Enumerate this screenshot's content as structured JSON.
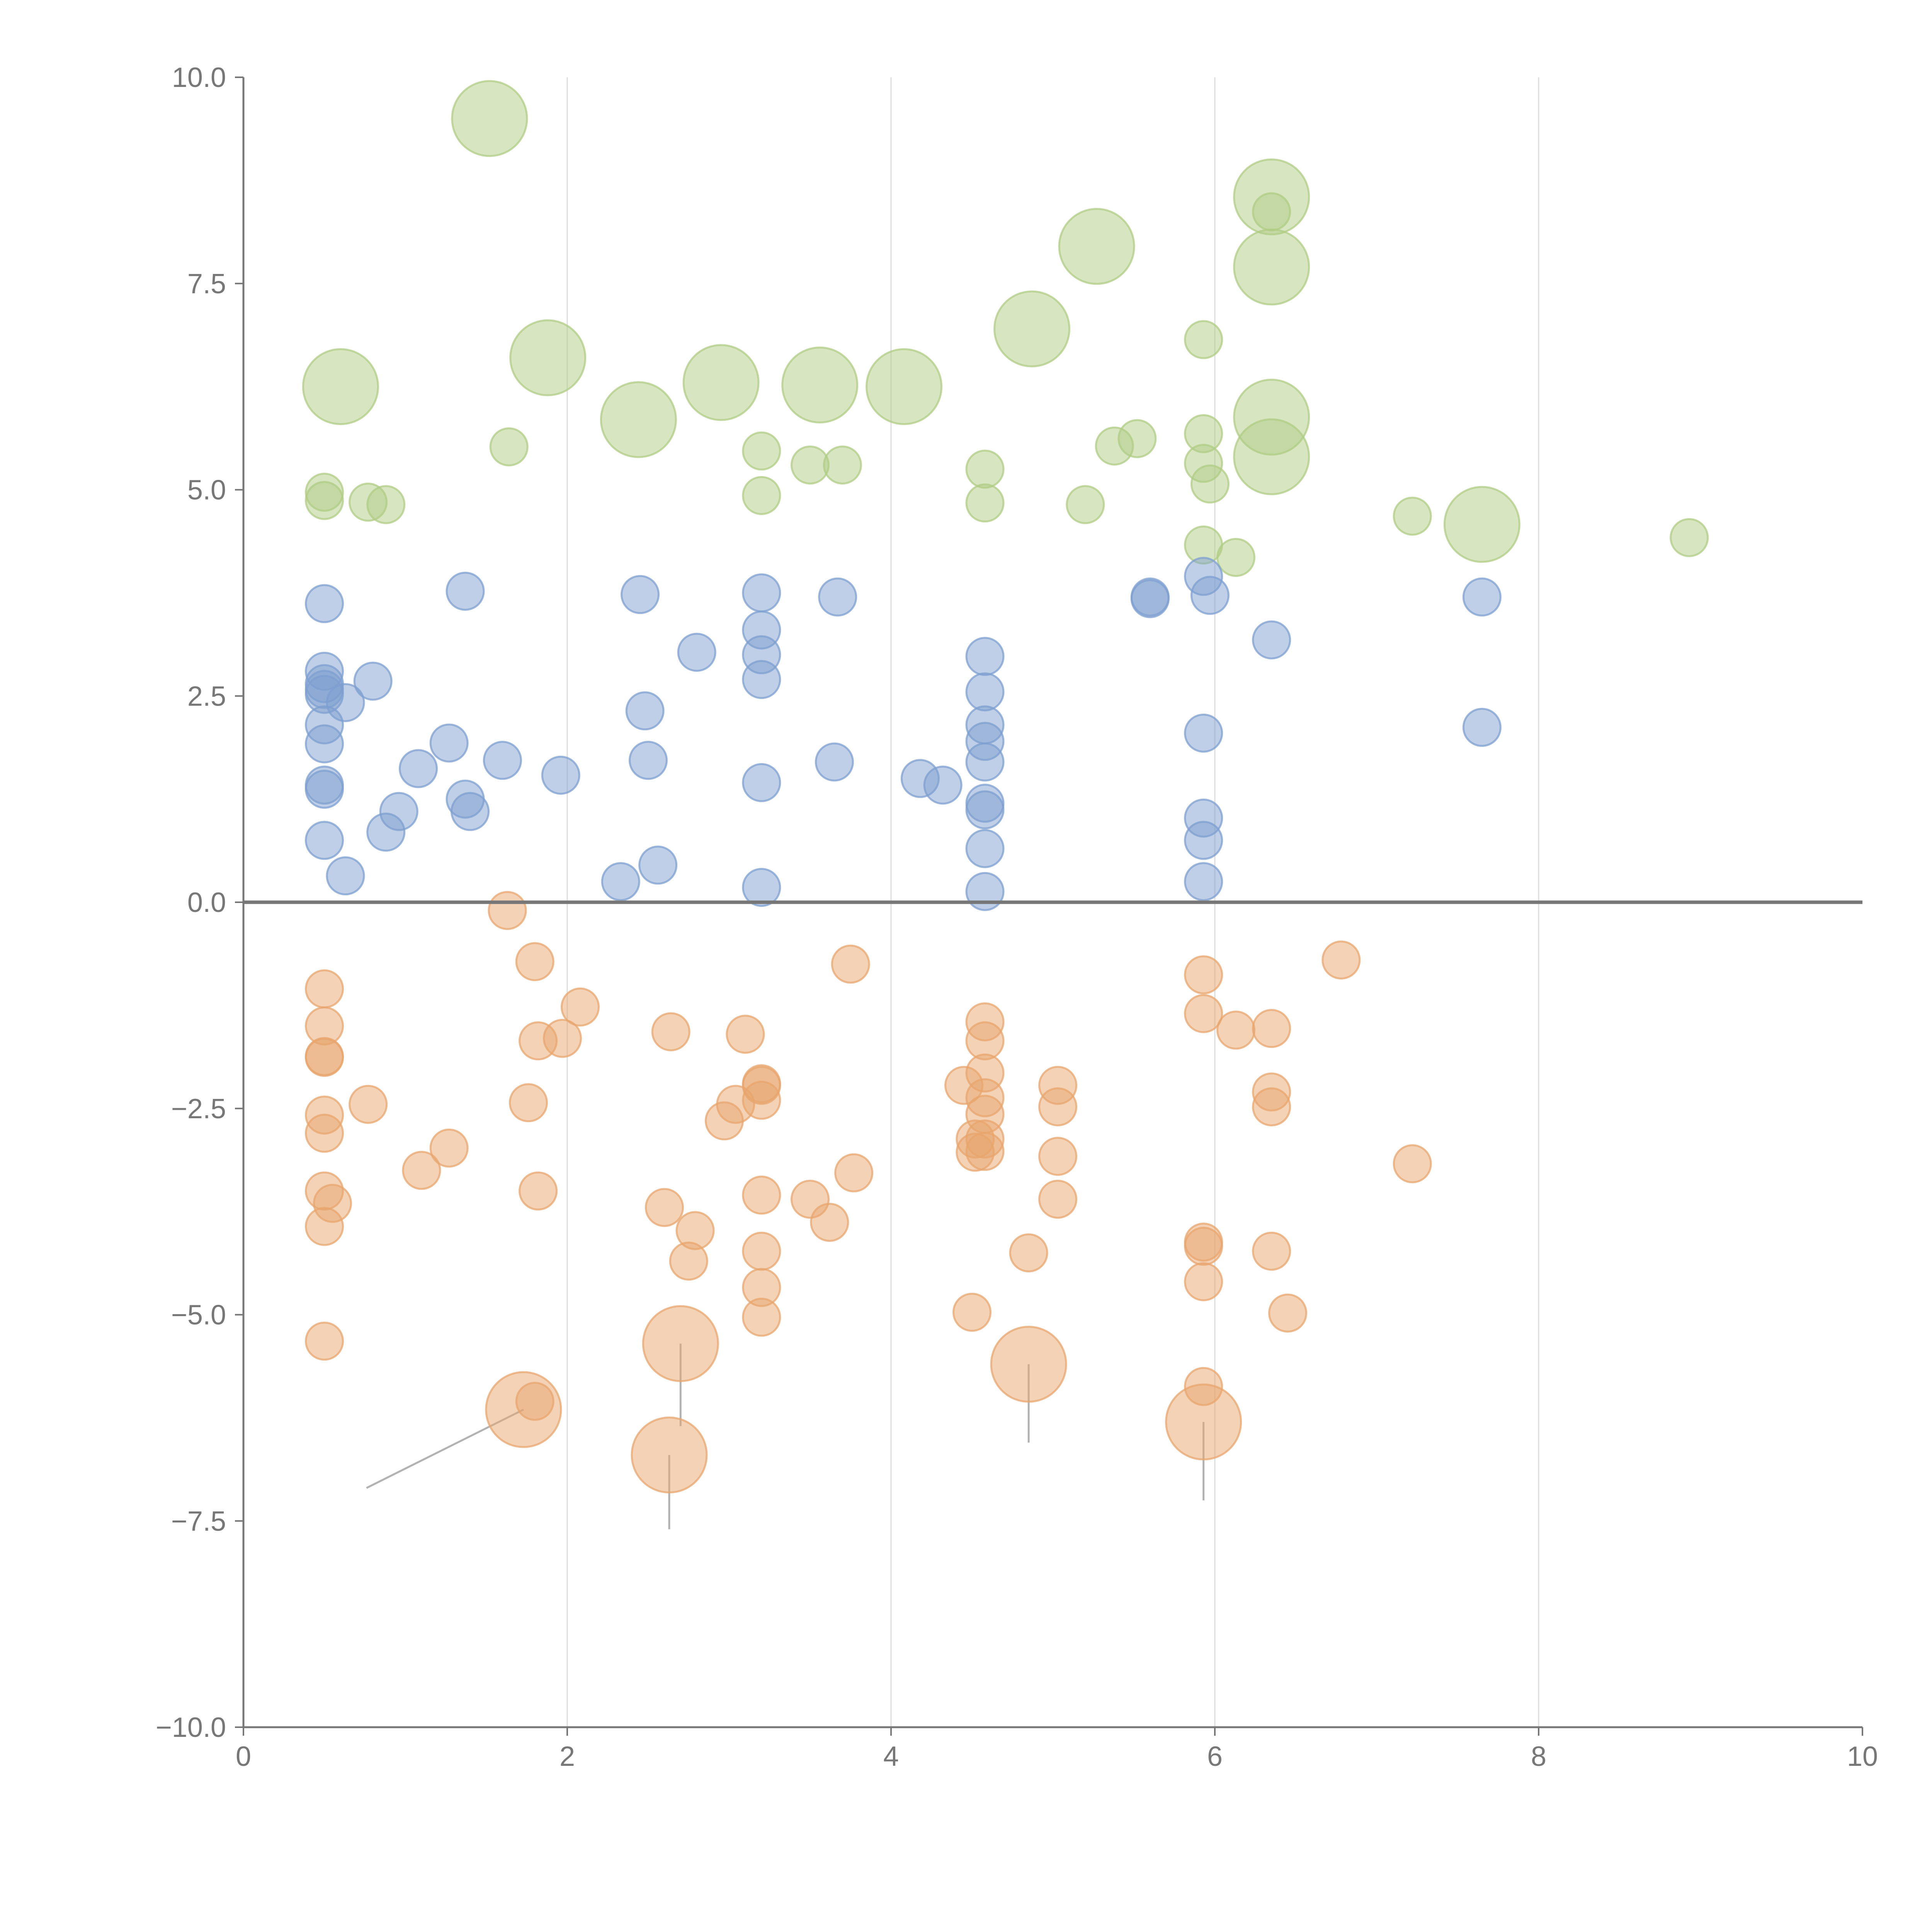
{
  "chart_data": {
    "type": "scatter",
    "title": "",
    "xlabel": "",
    "ylabel": "",
    "xlim": [
      0,
      10
    ],
    "ylim": [
      -10,
      10
    ],
    "x_ticks": [
      "0",
      "2",
      "4",
      "6",
      "8",
      "10"
    ],
    "y_ticks": [
      "−10.0",
      "−7.5",
      "−5.0",
      "−2.5",
      "0.0",
      "2.5",
      "5.0",
      "7.5",
      "10.0"
    ],
    "grid": "vertical",
    "zero_line": true,
    "colors": {
      "top": "#b0cc84",
      "middle": "#7d9fd0",
      "bottom": "#e8a56e",
      "leader": "#aaaaaa",
      "axis": "#777777"
    },
    "series": [
      {
        "key": "top",
        "small": [
          [
            0.5,
            4.97
          ],
          [
            0.5,
            4.87
          ],
          [
            0.77,
            4.85
          ],
          [
            0.88,
            4.82
          ],
          [
            1.64,
            5.52
          ],
          [
            3.2,
            5.47
          ],
          [
            3.2,
            4.93
          ],
          [
            3.5,
            5.3
          ],
          [
            3.7,
            5.3
          ],
          [
            4.58,
            5.25
          ],
          [
            4.58,
            4.84
          ],
          [
            5.2,
            4.82
          ],
          [
            5.38,
            5.53
          ],
          [
            5.52,
            5.62
          ],
          [
            5.93,
            6.82
          ],
          [
            5.93,
            5.68
          ],
          [
            5.93,
            5.32
          ],
          [
            5.97,
            5.07
          ],
          [
            5.93,
            4.33
          ],
          [
            6.13,
            4.18
          ],
          [
            6.35,
            8.37
          ],
          [
            7.22,
            4.68
          ],
          [
            8.93,
            4.42
          ]
        ],
        "large": [
          [
            0.6,
            6.25,
            0.8,
            6.0
          ],
          [
            1.52,
            9.5,
            1.82,
            9.55
          ],
          [
            1.88,
            6.6,
            1.88,
            6.75
          ],
          [
            2.44,
            5.85,
            2.5,
            5.95
          ],
          [
            2.95,
            6.3,
            3.05,
            6.32
          ],
          [
            3.56,
            6.27,
            3.56,
            6.25
          ],
          [
            4.08,
            6.25,
            4.15,
            6.1
          ],
          [
            4.87,
            6.95,
            4.95,
            6.6
          ],
          [
            5.27,
            7.95,
            5.3,
            8.0
          ],
          [
            6.35,
            8.55,
            6.5,
            8.75
          ],
          [
            6.35,
            7.7,
            6.45,
            7.7
          ],
          [
            6.35,
            5.88,
            6.45,
            5.95
          ],
          [
            6.35,
            5.4,
            6.4,
            5.25
          ],
          [
            7.65,
            4.58,
            7.85,
            4.65
          ]
        ]
      },
      {
        "key": "middle",
        "small": [
          [
            0.5,
            3.62
          ],
          [
            0.5,
            2.8
          ],
          [
            0.5,
            2.65
          ],
          [
            0.5,
            2.58
          ],
          [
            0.5,
            2.52
          ],
          [
            0.63,
            2.42
          ],
          [
            0.8,
            2.68
          ],
          [
            0.5,
            2.15
          ],
          [
            0.5,
            1.92
          ],
          [
            0.5,
            1.42
          ],
          [
            0.5,
            1.37
          ],
          [
            0.5,
            0.75
          ],
          [
            0.63,
            0.32
          ],
          [
            0.88,
            0.85
          ],
          [
            0.96,
            1.1
          ],
          [
            1.08,
            1.62
          ],
          [
            1.27,
            1.93
          ],
          [
            1.37,
            1.25
          ],
          [
            1.4,
            1.1
          ],
          [
            1.37,
            3.77
          ],
          [
            1.6,
            1.72
          ],
          [
            1.96,
            1.54
          ],
          [
            2.33,
            0.25
          ],
          [
            2.45,
            3.73
          ],
          [
            2.48,
            2.32
          ],
          [
            2.5,
            1.72
          ],
          [
            2.56,
            0.45
          ],
          [
            2.8,
            3.03
          ],
          [
            3.2,
            3.75
          ],
          [
            3.2,
            3.3
          ],
          [
            3.2,
            3.0
          ],
          [
            3.2,
            2.7
          ],
          [
            3.2,
            1.45
          ],
          [
            3.2,
            0.18
          ],
          [
            3.65,
            1.7
          ],
          [
            3.67,
            3.7
          ],
          [
            4.18,
            1.5
          ],
          [
            4.32,
            1.42
          ],
          [
            4.58,
            2.98
          ],
          [
            4.58,
            2.55
          ],
          [
            4.58,
            2.15
          ],
          [
            4.58,
            1.95
          ],
          [
            4.58,
            1.7
          ],
          [
            4.58,
            1.2
          ],
          [
            4.58,
            1.12
          ],
          [
            4.58,
            0.65
          ],
          [
            4.58,
            0.13
          ],
          [
            5.6,
            3.7
          ],
          [
            5.6,
            3.68
          ],
          [
            5.93,
            3.95
          ],
          [
            5.97,
            3.72
          ],
          [
            5.93,
            2.05
          ],
          [
            5.93,
            1.02
          ],
          [
            5.93,
            0.75
          ],
          [
            5.93,
            0.25
          ],
          [
            6.35,
            3.18
          ],
          [
            7.65,
            3.7
          ],
          [
            7.65,
            2.12
          ]
        ],
        "large": []
      },
      {
        "key": "bottom",
        "small": [
          [
            1.63,
            -0.1
          ],
          [
            1.8,
            -0.72
          ],
          [
            0.5,
            -1.05
          ],
          [
            0.5,
            -1.5
          ],
          [
            0.5,
            -1.87
          ],
          [
            0.5,
            -1.88
          ],
          [
            0.5,
            -2.58
          ],
          [
            0.5,
            -2.8
          ],
          [
            0.5,
            -3.5
          ],
          [
            0.55,
            -3.65
          ],
          [
            0.5,
            -3.93
          ],
          [
            0.5,
            -5.32
          ],
          [
            0.77,
            -2.45
          ],
          [
            1.1,
            -3.25
          ],
          [
            1.27,
            -2.98
          ],
          [
            1.76,
            -2.43
          ],
          [
            1.82,
            -1.68
          ],
          [
            1.97,
            -1.65
          ],
          [
            2.08,
            -1.27
          ],
          [
            1.82,
            -3.5
          ],
          [
            2.64,
            -1.57
          ],
          [
            2.6,
            -3.7
          ],
          [
            2.79,
            -3.98
          ],
          [
            2.75,
            -4.35
          ],
          [
            2.97,
            -2.65
          ],
          [
            3.04,
            -2.45
          ],
          [
            3.1,
            -1.6
          ],
          [
            3.2,
            -2.2
          ],
          [
            3.2,
            -2.22
          ],
          [
            3.2,
            -2.4
          ],
          [
            3.2,
            -3.55
          ],
          [
            3.2,
            -4.23
          ],
          [
            3.2,
            -4.67
          ],
          [
            3.2,
            -5.03
          ],
          [
            3.5,
            -3.6
          ],
          [
            3.62,
            -3.88
          ],
          [
            3.75,
            -0.75
          ],
          [
            3.77,
            -3.28
          ],
          [
            4.45,
            -2.22
          ],
          [
            4.58,
            -1.45
          ],
          [
            4.58,
            -1.68
          ],
          [
            4.58,
            -2.07
          ],
          [
            4.58,
            -2.37
          ],
          [
            4.58,
            -2.57
          ],
          [
            4.58,
            -2.87
          ],
          [
            4.52,
            -2.87
          ],
          [
            4.52,
            -3.03
          ],
          [
            4.58,
            -3.02
          ],
          [
            4.5,
            -4.97
          ],
          [
            4.85,
            -4.25
          ],
          [
            5.03,
            -2.22
          ],
          [
            5.03,
            -2.48
          ],
          [
            5.03,
            -3.08
          ],
          [
            5.03,
            -3.6
          ],
          [
            5.93,
            -0.88
          ],
          [
            5.93,
            -1.35
          ],
          [
            6.13,
            -1.55
          ],
          [
            6.35,
            -1.53
          ],
          [
            6.35,
            -2.3
          ],
          [
            6.35,
            -2.48
          ],
          [
            5.93,
            -4.12
          ],
          [
            5.93,
            -4.17
          ],
          [
            5.93,
            -4.6
          ],
          [
            5.93,
            -5.87
          ],
          [
            6.35,
            -4.23
          ],
          [
            6.45,
            -4.98
          ],
          [
            6.78,
            -0.7
          ],
          [
            7.22,
            -3.17
          ],
          [
            1.8,
            -6.05
          ]
        ],
        "large": [
          [
            1.73,
            -6.15,
            0.76,
            -7.1
          ],
          [
            2.7,
            -5.35,
            2.7,
            -6.35
          ],
          [
            2.63,
            -6.7,
            2.63,
            -7.6
          ],
          [
            4.85,
            -5.6,
            4.85,
            -6.55
          ],
          [
            5.93,
            -6.3,
            5.93,
            -7.25
          ]
        ]
      }
    ]
  }
}
